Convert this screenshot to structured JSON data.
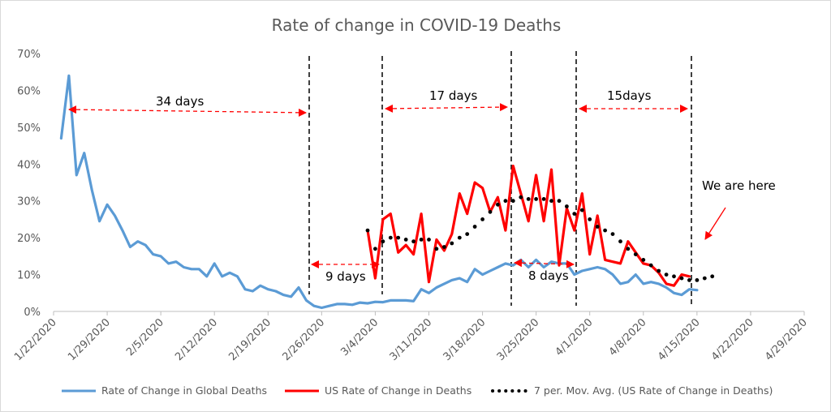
{
  "chart_data": {
    "type": "line",
    "title": "Rate of change in COVID-19 Deaths",
    "ylim": [
      0,
      70
    ],
    "ytick_labels": [
      "0%",
      "10%",
      "20%",
      "30%",
      "40%",
      "50%",
      "60%",
      "70%"
    ],
    "xtick_labels": [
      "1/22/2020",
      "1/29/2020",
      "2/5/2020",
      "2/12/2020",
      "2/19/2020",
      "2/26/2020",
      "3/4/2020",
      "3/11/2020",
      "3/18/2020",
      "3/25/2020",
      "4/1/2020",
      "4/8/2020",
      "4/15/2020",
      "4/22/2020",
      "4/29/2020"
    ],
    "xlim_days": [
      0,
      98
    ],
    "grid": "none",
    "legend_position": "bottom",
    "series": [
      {
        "name": "Rate of Change in Global Deaths",
        "color": "#5b9bd5",
        "style": "solid",
        "start_date": "1/23/2020",
        "values": [
          47,
          64,
          37,
          43,
          33,
          24.5,
          29,
          26,
          22,
          17.5,
          19,
          18,
          15.5,
          15,
          13,
          13.5,
          12,
          11.5,
          11.5,
          9.5,
          13,
          9.5,
          10.5,
          9.5,
          6,
          5.5,
          7,
          6,
          5.5,
          4.5,
          4,
          6.5,
          3,
          1.5,
          1,
          1.5,
          2,
          2,
          1.8,
          2.4,
          2.2,
          2.6,
          2.5,
          3,
          3,
          3,
          2.8,
          6,
          5,
          6.5,
          7.5,
          8.5,
          9,
          8,
          11.5,
          10,
          11,
          12,
          13,
          12.5,
          14,
          12,
          14,
          12,
          13.5,
          13,
          13,
          10,
          11,
          11.5,
          12,
          11.5,
          10,
          7.5,
          8,
          10,
          7.5,
          8,
          7.5,
          6.5,
          5,
          4.5,
          6,
          5.8
        ]
      },
      {
        "name": "US Rate of Change in Deaths",
        "color": "#ff0000",
        "style": "solid",
        "start_date": "3/3/2020",
        "values": [
          22,
          9,
          25,
          26.5,
          16,
          18,
          15.5,
          26.5,
          8,
          19.5,
          16.5,
          21,
          32,
          26.5,
          35,
          33.5,
          27,
          31,
          22,
          39.5,
          32,
          24.5,
          37,
          24.5,
          38.5,
          12.5,
          28,
          22,
          32,
          15.5,
          26,
          14,
          13.5,
          13,
          19,
          16,
          13,
          12.5,
          10.5,
          7.5,
          7,
          10,
          9.5
        ]
      },
      {
        "name": "7 per. Mov. Avg. (US Rate of Change in Deaths)",
        "color": "#000000",
        "style": "dotted",
        "start_date": "3/3/2020",
        "values": [
          22,
          17,
          19,
          20,
          20,
          19.5,
          19,
          19.5,
          19.5,
          17,
          17.5,
          18.5,
          20,
          21,
          23,
          25,
          27,
          29,
          30,
          30,
          31,
          30.5,
          30.5,
          30.5,
          30,
          30,
          28.5,
          26.5,
          27.5,
          25,
          23,
          22,
          21,
          19,
          17,
          15.5,
          14,
          12.5,
          11,
          10,
          9.5,
          9,
          8.5,
          8.5,
          9,
          9.5
        ]
      }
    ],
    "annotations": {
      "label_34": "34 days",
      "label_17": "17 days",
      "label_15": "15days",
      "label_9": "9 days",
      "label_8": "8 days",
      "we_are_here": "We are here"
    }
  },
  "colors": {
    "axis": "#bfbfbf",
    "text": "#595959"
  }
}
